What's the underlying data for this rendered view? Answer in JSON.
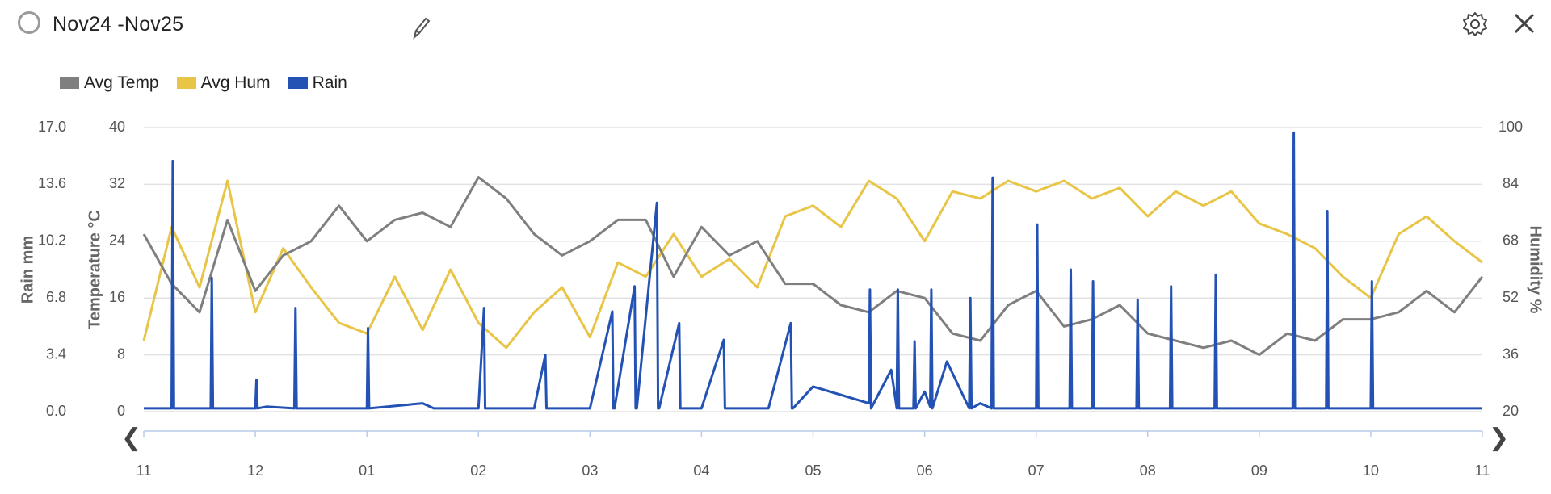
{
  "header": {
    "title": "Nov24 -Nov25"
  },
  "legend": [
    {
      "label": "Avg Temp",
      "color": "#7f7f7f"
    },
    {
      "label": "Avg Hum",
      "color": "#e8c547"
    },
    {
      "label": "Rain",
      "color": "#2352b4"
    }
  ],
  "icons": {
    "radio": "circle-outline-icon",
    "edit": "pencil-icon",
    "settings": "gear-icon",
    "close": "close-icon",
    "prev": "chevron-left-icon",
    "next": "chevron-right-icon"
  },
  "chart_data": {
    "type": "line",
    "title": "",
    "grid": true,
    "legend_position": "top-left",
    "x": {
      "ticks": [
        "11",
        "12",
        "01",
        "02",
        "03",
        "04",
        "05",
        "06",
        "07",
        "08",
        "09",
        "10",
        "11"
      ],
      "range": [
        0,
        12
      ]
    },
    "axes": {
      "rain": {
        "label": "Rain mm",
        "side": "left-outer",
        "range": [
          0,
          17
        ],
        "ticks": [
          "0.0",
          "3.4",
          "6.8",
          "10.2",
          "13.6",
          "17.0"
        ]
      },
      "temperature": {
        "label": "Temperature °C",
        "side": "left-inner",
        "range": [
          0,
          40
        ],
        "ticks": [
          "0",
          "8",
          "16",
          "24",
          "32",
          "40"
        ]
      },
      "humidity": {
        "label": "Humidity %",
        "side": "right",
        "range": [
          20,
          100
        ],
        "ticks": [
          "20",
          "36",
          "52",
          "68",
          "84",
          "100"
        ]
      }
    },
    "series": [
      {
        "name": "Avg Temp",
        "axis": "temperature",
        "color": "#7f7f7f",
        "x": [
          0,
          0.25,
          0.5,
          0.75,
          1.0,
          1.25,
          1.5,
          1.75,
          2.0,
          2.25,
          2.5,
          2.75,
          3.0,
          3.25,
          3.5,
          3.75,
          4.0,
          4.25,
          4.5,
          4.75,
          5.0,
          5.25,
          5.5,
          5.75,
          6.0,
          6.25,
          6.5,
          6.75,
          7.0,
          7.25,
          7.5,
          7.75,
          8.0,
          8.25,
          8.5,
          8.75,
          9.0,
          9.25,
          9.5,
          9.75,
          10.0,
          10.25,
          10.5,
          10.75,
          11.0,
          11.25,
          11.5,
          11.75,
          12.0
        ],
        "values": [
          25,
          18,
          14,
          27,
          17,
          22,
          24,
          29,
          24,
          27,
          28,
          26,
          33,
          30,
          25,
          22,
          24,
          27,
          27,
          19,
          26,
          22,
          24,
          18,
          18,
          15,
          14,
          17,
          16,
          11,
          10,
          15,
          17,
          12,
          13,
          15,
          11,
          10,
          9,
          10,
          8,
          11,
          10,
          13,
          13,
          14,
          17,
          14,
          19
        ]
      },
      {
        "name": "Avg Hum",
        "axis": "humidity",
        "color": "#e8c547",
        "x": [
          0,
          0.25,
          0.5,
          0.75,
          1.0,
          1.25,
          1.5,
          1.75,
          2.0,
          2.25,
          2.5,
          2.75,
          3.0,
          3.25,
          3.5,
          3.75,
          4.0,
          4.25,
          4.5,
          4.75,
          5.0,
          5.25,
          5.5,
          5.75,
          6.0,
          6.25,
          6.5,
          6.75,
          7.0,
          7.25,
          7.5,
          7.75,
          8.0,
          8.25,
          8.5,
          8.75,
          9.0,
          9.25,
          9.5,
          9.75,
          10.0,
          10.25,
          10.5,
          10.75,
          11.0,
          11.25,
          11.5,
          11.75,
          12.0
        ],
        "values": [
          40,
          72,
          55,
          85,
          48,
          66,
          55,
          45,
          42,
          58,
          43,
          60,
          45,
          38,
          48,
          55,
          41,
          62,
          58,
          70,
          58,
          63,
          55,
          75,
          78,
          72,
          85,
          80,
          68,
          82,
          80,
          85,
          82,
          85,
          80,
          83,
          75,
          82,
          78,
          82,
          73,
          70,
          66,
          58,
          52,
          70,
          75,
          68,
          62
        ]
      },
      {
        "name": "Rain",
        "axis": "rain",
        "color": "#2352b4",
        "x": [
          0,
          0.25,
          0.26,
          0.27,
          0.4,
          0.6,
          0.61,
          0.62,
          0.8,
          1.0,
          1.01,
          1.02,
          1.1,
          1.35,
          1.36,
          1.37,
          1.5,
          2.0,
          2.01,
          2.02,
          2.5,
          2.6,
          3.0,
          3.05,
          3.06,
          3.07,
          3.5,
          3.6,
          3.61,
          3.62,
          4.0,
          4.2,
          4.21,
          4.22,
          4.4,
          4.41,
          4.42,
          4.6,
          4.61,
          4.62,
          4.8,
          4.81,
          4.82,
          5.0,
          5.2,
          5.21,
          5.22,
          5.6,
          5.8,
          5.81,
          5.82,
          6.0,
          6.5,
          6.51,
          6.52,
          6.7,
          6.75,
          6.76,
          6.77,
          6.9,
          6.91,
          6.92,
          7.0,
          7.05,
          7.06,
          7.07,
          7.2,
          7.4,
          7.41,
          7.42,
          7.5,
          7.6,
          7.61,
          7.62,
          8.0,
          8.01,
          8.02,
          8.3,
          8.31,
          8.32,
          8.5,
          8.51,
          8.52,
          8.9,
          8.91,
          8.92,
          9.2,
          9.21,
          9.22,
          9.6,
          9.61,
          9.62,
          10.3,
          10.31,
          10.32,
          10.6,
          10.61,
          10.62,
          11.0,
          11.01,
          11.02,
          11.5,
          12.0
        ],
        "values": [
          0.2,
          0.2,
          15,
          0.2,
          0.2,
          0.2,
          8,
          0.2,
          0.2,
          0.2,
          1.9,
          0.2,
          0.3,
          0.2,
          6.2,
          0.2,
          0.2,
          0.2,
          5,
          0.2,
          0.5,
          0.2,
          0.2,
          6.2,
          0.2,
          0.2,
          0.2,
          3.4,
          0.2,
          0.2,
          0.2,
          6,
          0.2,
          0.2,
          7.5,
          0.2,
          0.2,
          12.5,
          0.2,
          0.2,
          5.3,
          0.2,
          0.2,
          0.2,
          4.3,
          0.2,
          0.2,
          0.2,
          5.3,
          0.2,
          0.2,
          1.5,
          0.5,
          7.3,
          0.2,
          2.5,
          0.2,
          7.3,
          0.2,
          0.2,
          4.2,
          0.2,
          1.2,
          0.3,
          7.3,
          0.2,
          3,
          0.2,
          6.8,
          0.2,
          0.5,
          0.2,
          14,
          0.2,
          0.2,
          11.2,
          0.2,
          0.2,
          8.5,
          0.2,
          0.2,
          7.8,
          0.2,
          0.2,
          6.7,
          0.2,
          0.2,
          7.5,
          0.2,
          0.2,
          8.2,
          0.2,
          0.2,
          16.7,
          0.2,
          0.2,
          12,
          0.2,
          0.2,
          7.8,
          0.2,
          0.2,
          0.2
        ]
      }
    ]
  }
}
